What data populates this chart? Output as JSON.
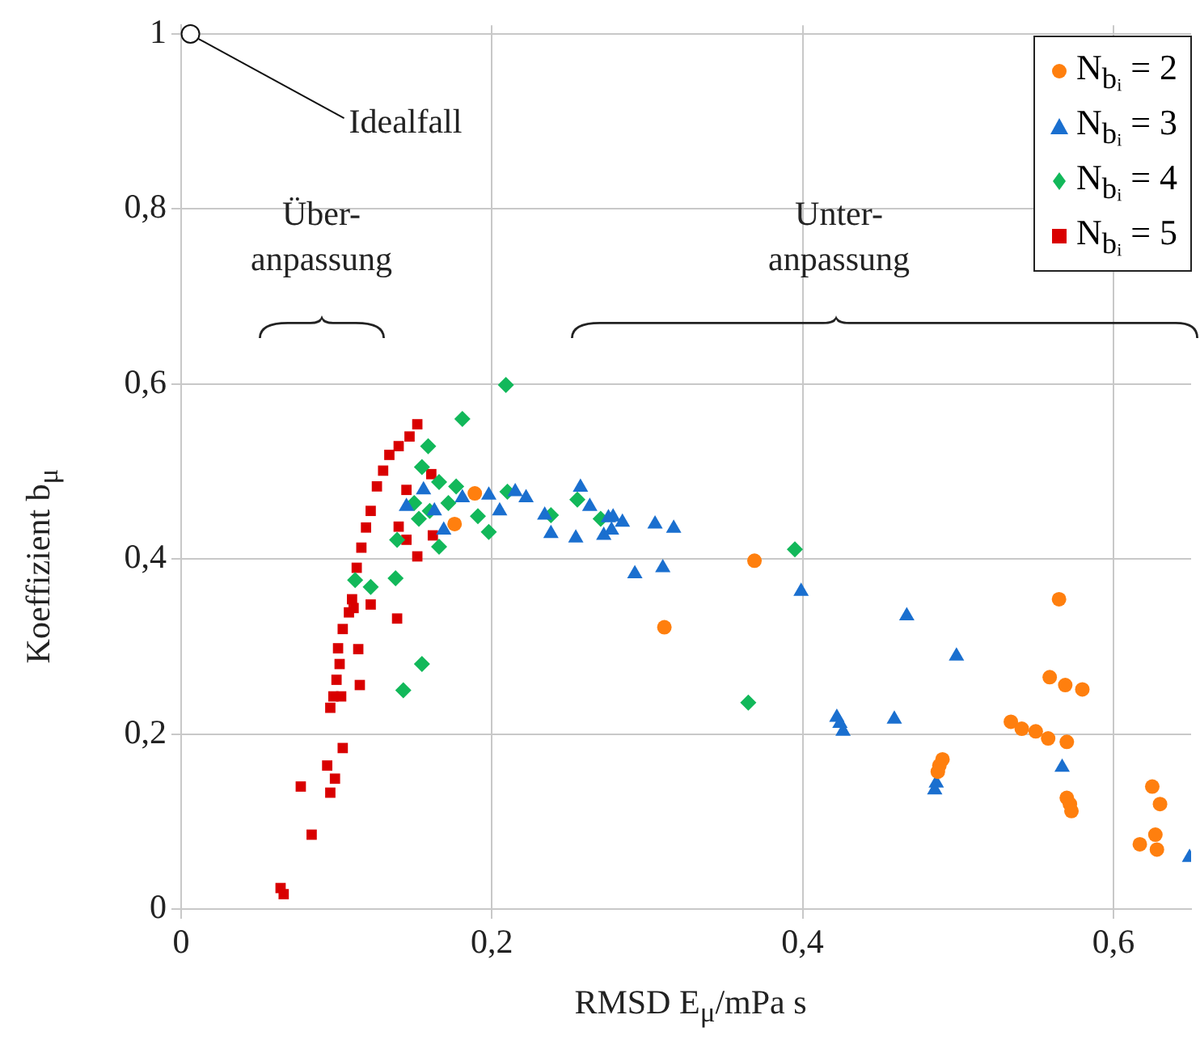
{
  "chart_data": {
    "type": "scatter",
    "xlabel": "RMSD E$_{μ}$/mPa s",
    "ylabel": "Koeffizient b$_{μ}$",
    "xlim": [
      0,
      0.65
    ],
    "ylim": [
      0,
      1.01
    ],
    "xticks": [
      {
        "value": 0,
        "label": "0"
      },
      {
        "value": 0.2,
        "label": "0,2"
      },
      {
        "value": 0.4,
        "label": "0,4"
      },
      {
        "value": 0.6,
        "label": "0,6"
      }
    ],
    "yticks": [
      {
        "value": 0,
        "label": "0"
      },
      {
        "value": 0.2,
        "label": "0,2"
      },
      {
        "value": 0.4,
        "label": "0,4"
      },
      {
        "value": 0.6,
        "label": "0,6"
      },
      {
        "value": 0.8,
        "label": "0,8"
      },
      {
        "value": 1,
        "label": "1"
      }
    ],
    "grid": true,
    "legend": "top right",
    "annotations": [
      {
        "text": "Idealfall",
        "x": 0.006,
        "y": 1
      },
      "Über-\nanpassung",
      "Unter-\nanpassung"
    ],
    "series": [
      {
        "name": "N$_{bᵢ}$ = 2",
        "color": "#ff7f0e",
        "marker": "circle",
        "x": [
          0.189,
          0.176,
          0.311,
          0.369,
          0.565,
          0.559,
          0.569,
          0.58,
          0.534,
          0.541,
          0.55,
          0.558,
          0.57,
          0.49,
          0.488,
          0.487,
          0.57,
          0.572,
          0.573,
          0.625,
          0.63,
          0.627,
          0.617,
          0.628
        ],
        "values": [
          0.475,
          0.44,
          0.322,
          0.398,
          0.354,
          0.265,
          0.256,
          0.251,
          0.214,
          0.206,
          0.203,
          0.195,
          0.191,
          0.171,
          0.164,
          0.157,
          0.127,
          0.12,
          0.112,
          0.14,
          0.12,
          0.085,
          0.074,
          0.068
        ]
      },
      {
        "name": "N$_{bᵢ}$ = 3",
        "color": "#1a6fcf",
        "marker": "triangle",
        "x": [
          0.399,
          0.467,
          0.499,
          0.422,
          0.424,
          0.426,
          0.459,
          0.486,
          0.485,
          0.567,
          0.649,
          0.238,
          0.254,
          0.272,
          0.277,
          0.284,
          0.305,
          0.317,
          0.292,
          0.31,
          0.145,
          0.163,
          0.181,
          0.198,
          0.205,
          0.215,
          0.222,
          0.234,
          0.169,
          0.156,
          0.257,
          0.263,
          0.275,
          0.278
        ],
        "values": [
          0.363,
          0.335,
          0.289,
          0.219,
          0.212,
          0.203,
          0.217,
          0.144,
          0.136,
          0.162,
          0.059,
          0.429,
          0.424,
          0.427,
          0.433,
          0.442,
          0.44,
          0.435,
          0.383,
          0.39,
          0.46,
          0.455,
          0.47,
          0.473,
          0.455,
          0.477,
          0.47,
          0.45,
          0.433,
          0.479,
          0.482,
          0.46,
          0.447,
          0.448
        ]
      },
      {
        "name": "N$_{bᵢ}$ = 4",
        "color": "#12b85a",
        "marker": "diamond",
        "x": [
          0.209,
          0.181,
          0.159,
          0.395,
          0.365,
          0.166,
          0.155,
          0.143,
          0.198,
          0.191,
          0.21,
          0.112,
          0.122,
          0.138,
          0.155,
          0.166,
          0.177,
          0.16,
          0.153,
          0.15,
          0.139,
          0.172,
          0.255,
          0.27,
          0.238
        ],
        "values": [
          0.599,
          0.56,
          0.529,
          0.411,
          0.236,
          0.414,
          0.28,
          0.25,
          0.431,
          0.449,
          0.477,
          0.376,
          0.368,
          0.378,
          0.505,
          0.488,
          0.483,
          0.455,
          0.446,
          0.464,
          0.422,
          0.464,
          0.468,
          0.446,
          0.45
        ]
      },
      {
        "name": "N$_{bᵢ}$ = 5",
        "color": "#d90000",
        "marker": "square",
        "x": [
          0.064,
          0.066,
          0.077,
          0.084,
          0.094,
          0.096,
          0.099,
          0.104,
          0.096,
          0.098,
          0.1,
          0.102,
          0.101,
          0.104,
          0.108,
          0.11,
          0.113,
          0.116,
          0.119,
          0.122,
          0.126,
          0.13,
          0.134,
          0.14,
          0.152,
          0.147,
          0.161,
          0.145,
          0.14,
          0.145,
          0.152,
          0.162,
          0.139,
          0.122,
          0.111,
          0.114,
          0.115,
          0.103
        ],
        "values": [
          0.024,
          0.017,
          0.14,
          0.085,
          0.164,
          0.133,
          0.149,
          0.184,
          0.23,
          0.243,
          0.262,
          0.28,
          0.298,
          0.32,
          0.339,
          0.354,
          0.39,
          0.413,
          0.436,
          0.455,
          0.483,
          0.501,
          0.519,
          0.529,
          0.554,
          0.54,
          0.497,
          0.479,
          0.437,
          0.422,
          0.403,
          0.427,
          0.332,
          0.348,
          0.344,
          0.297,
          0.256,
          0.243
        ]
      }
    ]
  }
}
